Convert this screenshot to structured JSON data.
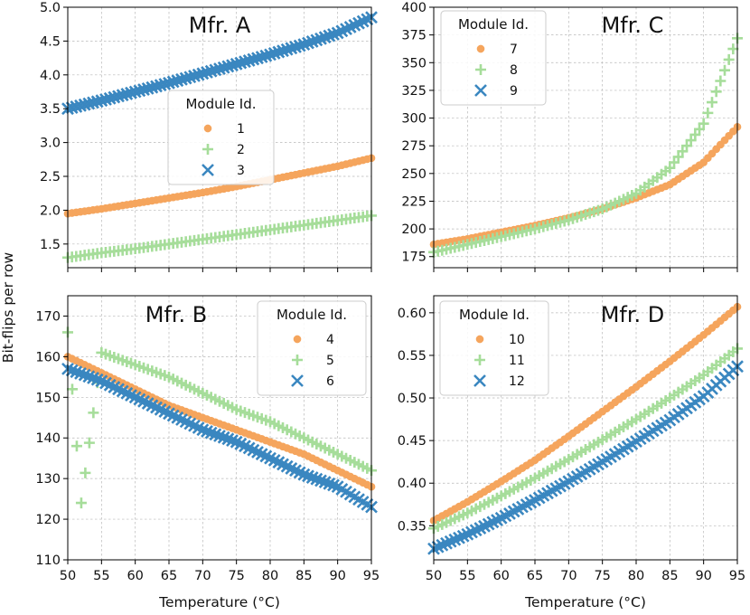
{
  "figure": {
    "xlabel": "Temperature (°C)",
    "ylabel": "Bit-flips per row"
  },
  "chart_data": [
    {
      "type": "scatter",
      "title": "Mfr. A",
      "xlabel": "Temperature (°C)",
      "ylabel": "Bit-flips per row",
      "xlim": [
        50,
        95
      ],
      "ylim": [
        1.15,
        5.0
      ],
      "xticks": [
        50,
        55,
        60,
        65,
        70,
        75,
        80,
        85,
        90,
        95
      ],
      "yticks": [
        1.5,
        2.0,
        2.5,
        3.0,
        3.5,
        4.0,
        4.5,
        5.0
      ],
      "ytick_labels": [
        "1.5",
        "2.0",
        "2.5",
        "3.0",
        "3.5",
        "4.0",
        "4.5",
        "5.0"
      ],
      "grid": true,
      "legend": {
        "title": "Module Id.",
        "placement": "center"
      },
      "series": [
        {
          "name": "1",
          "marker": "circle",
          "color": "#f5a55d",
          "x": [
            50,
            55,
            60,
            65,
            70,
            75,
            80,
            85,
            90,
            95
          ],
          "values": [
            1.95,
            2.02,
            2.1,
            2.18,
            2.26,
            2.35,
            2.45,
            2.55,
            2.65,
            2.77
          ]
        },
        {
          "name": "2",
          "marker": "plus",
          "color": "#a6dd9a",
          "x": [
            50,
            55,
            60,
            65,
            70,
            75,
            80,
            85,
            90,
            95
          ],
          "values": [
            1.3,
            1.37,
            1.43,
            1.5,
            1.57,
            1.64,
            1.71,
            1.78,
            1.85,
            1.92
          ]
        },
        {
          "name": "3",
          "marker": "x",
          "color": "#3a87c0",
          "x": [
            50,
            55,
            60,
            65,
            70,
            75,
            80,
            85,
            90,
            95
          ],
          "values": [
            3.5,
            3.62,
            3.75,
            3.88,
            4.02,
            4.16,
            4.3,
            4.45,
            4.62,
            4.85
          ]
        }
      ]
    },
    {
      "type": "scatter",
      "title": "Mfr. C",
      "xlabel": "Temperature (°C)",
      "ylabel": "Bit-flips per row",
      "xlim": [
        50,
        95
      ],
      "ylim": [
        165,
        400
      ],
      "xticks": [
        50,
        55,
        60,
        65,
        70,
        75,
        80,
        85,
        90,
        95
      ],
      "yticks": [
        175,
        200,
        225,
        250,
        275,
        300,
        325,
        350,
        375,
        400
      ],
      "ytick_labels": [
        "175",
        "200",
        "225",
        "250",
        "275",
        "300",
        "325",
        "350",
        "375",
        "400"
      ],
      "grid": true,
      "legend": {
        "title": "Module Id.",
        "placement": "upper left"
      },
      "series": [
        {
          "name": "7",
          "marker": "circle",
          "color": "#f5a55d",
          "x": [
            50,
            55,
            60,
            65,
            70,
            75,
            80,
            85,
            90,
            95
          ],
          "values": [
            186,
            191,
            197,
            203,
            210,
            218,
            228,
            240,
            260,
            292
          ]
        },
        {
          "name": "8",
          "marker": "plus",
          "color": "#a6dd9a",
          "x": [
            50,
            55,
            60,
            65,
            70,
            75,
            80,
            85,
            90,
            95
          ],
          "values": [
            179,
            186,
            193,
            200,
            208,
            218,
            232,
            255,
            295,
            372
          ]
        },
        {
          "name": "9",
          "marker": "x",
          "color": "#3a87c0",
          "x": [],
          "values": []
        }
      ]
    },
    {
      "type": "scatter",
      "title": "Mfr. B",
      "xlabel": "Temperature (°C)",
      "ylabel": "Bit-flips per row",
      "xlim": [
        50,
        95
      ],
      "ylim": [
        110,
        175
      ],
      "xticks": [
        50,
        55,
        60,
        65,
        70,
        75,
        80,
        85,
        90,
        95
      ],
      "yticks": [
        110,
        120,
        130,
        140,
        150,
        160,
        170
      ],
      "ytick_labels": [
        "110",
        "120",
        "130",
        "140",
        "150",
        "160",
        "170"
      ],
      "grid": true,
      "legend": {
        "title": "Module Id.",
        "placement": "upper right"
      },
      "series": [
        {
          "name": "4",
          "marker": "circle",
          "color": "#f5a55d",
          "x": [
            50,
            55,
            60,
            65,
            70,
            75,
            80,
            85,
            90,
            95
          ],
          "values": [
            160,
            156,
            152,
            148,
            145,
            142,
            139,
            136,
            132,
            128
          ]
        },
        {
          "name": "5",
          "marker": "plus",
          "color": "#a6dd9a",
          "x": [
            50,
            52,
            55,
            60,
            65,
            70,
            75,
            80,
            85,
            90,
            95
          ],
          "values": [
            166,
            124,
            161,
            158,
            155,
            151,
            147,
            144,
            140,
            136,
            132
          ]
        },
        {
          "name": "6",
          "marker": "x",
          "color": "#3a87c0",
          "x": [
            50,
            55,
            60,
            65,
            70,
            75,
            80,
            85,
            90,
            95
          ],
          "values": [
            157,
            154,
            150,
            146,
            142,
            139,
            135,
            131,
            128,
            123
          ]
        }
      ]
    },
    {
      "type": "scatter",
      "title": "Mfr. D",
      "xlabel": "Temperature (°C)",
      "ylabel": "Bit-flips per row",
      "xlim": [
        50,
        95
      ],
      "ylim": [
        0.31,
        0.62
      ],
      "xticks": [
        50,
        55,
        60,
        65,
        70,
        75,
        80,
        85,
        90,
        95
      ],
      "yticks": [
        0.35,
        0.4,
        0.45,
        0.5,
        0.55,
        0.6
      ],
      "ytick_labels": [
        "0.35",
        "0.40",
        "0.45",
        "0.50",
        "0.55",
        "0.60"
      ],
      "grid": true,
      "legend": {
        "title": "Module Id.",
        "placement": "upper left"
      },
      "series": [
        {
          "name": "10",
          "marker": "circle",
          "color": "#f5a55d",
          "x": [
            50,
            55,
            60,
            65,
            70,
            75,
            80,
            85,
            90,
            95
          ],
          "values": [
            0.356,
            0.378,
            0.402,
            0.427,
            0.455,
            0.484,
            0.513,
            0.543,
            0.574,
            0.607
          ]
        },
        {
          "name": "11",
          "marker": "plus",
          "color": "#a6dd9a",
          "x": [
            50,
            55,
            60,
            65,
            70,
            75,
            80,
            85,
            90,
            95
          ],
          "values": [
            0.347,
            0.365,
            0.385,
            0.406,
            0.428,
            0.451,
            0.475,
            0.5,
            0.527,
            0.558
          ]
        },
        {
          "name": "12",
          "marker": "x",
          "color": "#3a87c0",
          "x": [
            50,
            55,
            60,
            65,
            70,
            75,
            80,
            85,
            90,
            95
          ],
          "values": [
            0.323,
            0.34,
            0.359,
            0.38,
            0.402,
            0.425,
            0.449,
            0.474,
            0.502,
            0.537
          ]
        }
      ]
    }
  ]
}
